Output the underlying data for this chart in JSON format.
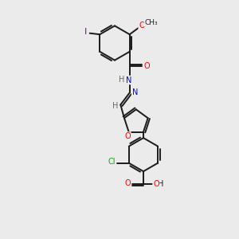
{
  "bg_color": "#ebebeb",
  "bond_color": "#1a1a1a",
  "atom_colors": {
    "O": "#ff0000",
    "N": "#0000ee",
    "Cl": "#00aa00",
    "I": "#8B008B",
    "C": "#1a1a1a",
    "H": "#666666"
  },
  "lw": 1.4,
  "figsize": [
    3.0,
    3.0
  ],
  "dpi": 100,
  "fs": 7.0,
  "xlim": [
    0,
    10
  ],
  "ylim": [
    0,
    10
  ]
}
